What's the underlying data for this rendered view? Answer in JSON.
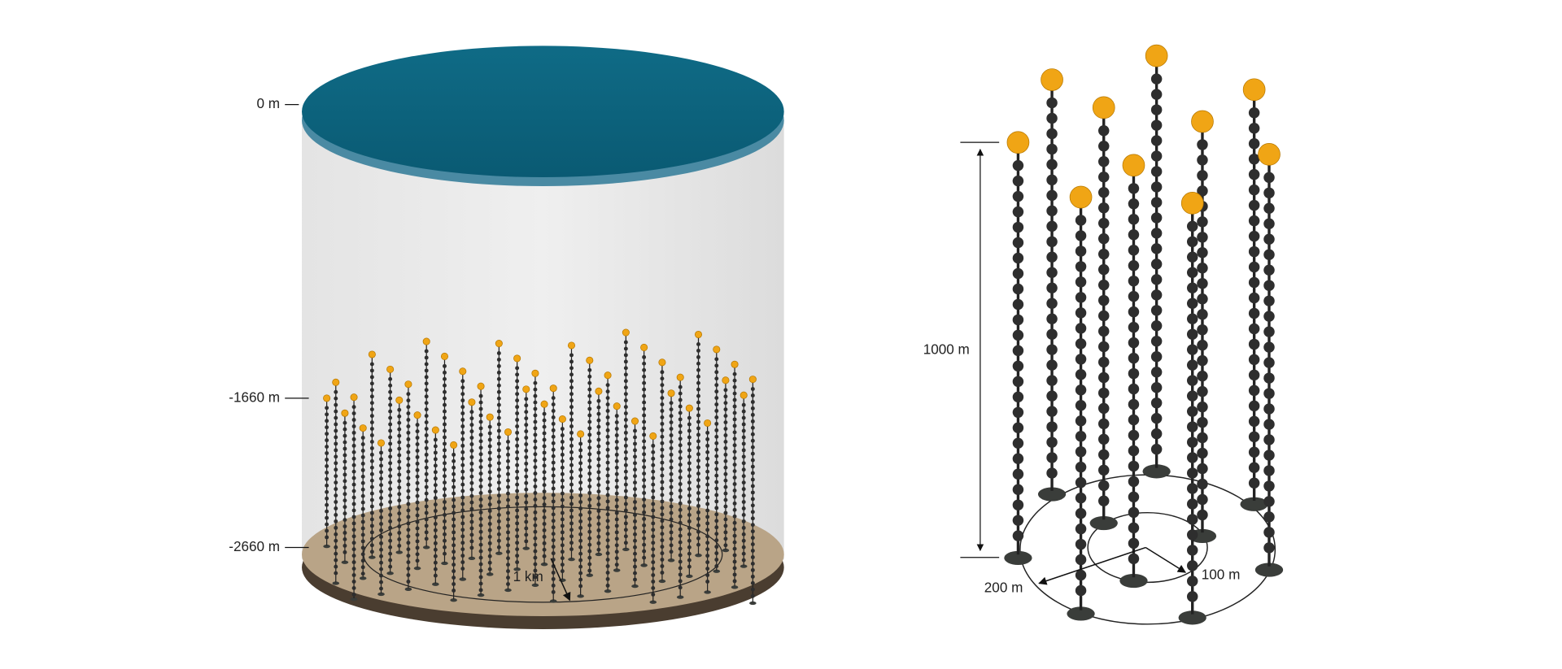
{
  "depth_labels": {
    "surface": "0 m",
    "shallow": "-1660 m",
    "deep": "-2660 m"
  },
  "left_scale": "1 km",
  "right_labels": {
    "height": "1000 m",
    "outer_radius": "200 m",
    "inner_radius": "100 m"
  }
}
